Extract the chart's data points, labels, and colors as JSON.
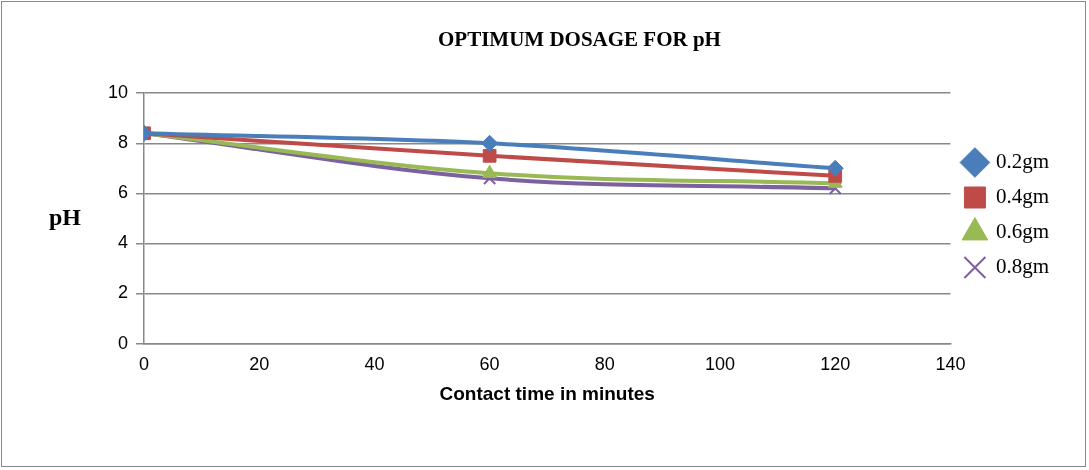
{
  "chart_data": {
    "type": "line",
    "title": "OPTIMUM DOSAGE FOR pH",
    "xlabel": "Contact time in minutes",
    "ylabel": "pH",
    "x": [
      0,
      60,
      120
    ],
    "series": [
      {
        "name": "0.2gm",
        "color": "#4a7ebb",
        "values": [
          8.4,
          8.0,
          7.0
        ],
        "marker": "diamond"
      },
      {
        "name": "0.4gm",
        "color": "#be4b48",
        "values": [
          8.4,
          7.5,
          6.7
        ],
        "marker": "square"
      },
      {
        "name": "0.6gm",
        "color": "#98b954",
        "values": [
          8.4,
          6.8,
          6.4
        ],
        "marker": "triangle"
      },
      {
        "name": "0.8gm",
        "color": "#7d60a0",
        "values": [
          8.4,
          6.6,
          6.2
        ],
        "marker": "cross"
      }
    ],
    "xlim": [
      0,
      140
    ],
    "xticks": [
      0,
      20,
      40,
      60,
      80,
      100,
      120,
      140
    ],
    "ylim": [
      0,
      10
    ],
    "yticks": [
      0,
      2,
      4,
      6,
      8,
      10
    ],
    "grid": "y",
    "legend": "right"
  }
}
